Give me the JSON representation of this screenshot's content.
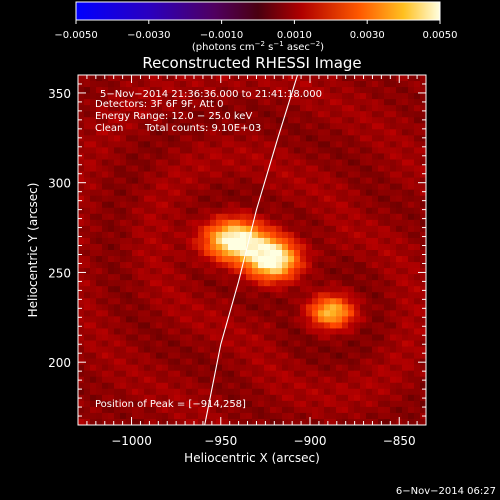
{
  "chart_data": {
    "type": "heatmap",
    "title": "Reconstructed RHESSI Image",
    "xlabel": "Heliocentric X (arcsec)",
    "ylabel": "Heliocentric Y (arcsec)",
    "xlim": [
      -1030,
      -835
    ],
    "ylim": [
      165,
      360
    ],
    "xticks": [
      -1000,
      -950,
      -900,
      -850
    ],
    "xtick_labels": [
      "−1000",
      "−950",
      "−900",
      "−850"
    ],
    "yticks": [
      200,
      250,
      300,
      350
    ],
    "ytick_labels": [
      "200",
      "250",
      "300",
      "350"
    ],
    "colorbar": {
      "range": [
        -0.005,
        0.005
      ],
      "ticks": [
        -0.005,
        -0.003,
        -0.001,
        0.001,
        0.003,
        0.005
      ],
      "tick_labels": [
        "−0.0050",
        "−0.0030",
        "−0.0010",
        "0.0010",
        "0.0030",
        "0.0050"
      ],
      "units_text": "(photons cm",
      "units_exp1": "−2",
      "units_mid": " s",
      "units_exp2": "−1",
      "units_end": " asec",
      "units_exp3": "−2",
      "units_close": ")"
    },
    "annotations": {
      "time_range": "5−Nov−2014 21:36:36.000 to 21:41:18.000",
      "detectors": "Detectors: 3F 6F 9F, Att 0",
      "energy": "Energy Range: 12.0 − 25.0 keV",
      "method": "Clean",
      "counts": "Total counts: 9.10E+03",
      "peak": "Position of Peak = [−914,258]"
    },
    "sources": [
      {
        "x": -942,
        "y": 268,
        "intensity": 1.0,
        "sx": 13,
        "sy": 8
      },
      {
        "x": -921,
        "y": 257,
        "intensity": 1.0,
        "sx": 11,
        "sy": 8
      },
      {
        "x": -888,
        "y": 228,
        "intensity": 0.72,
        "sx": 9,
        "sy": 6
      }
    ],
    "limb_curve": [
      [
        -959,
        165
      ],
      [
        -950,
        210
      ],
      [
        -940,
        245
      ],
      [
        -930,
        285
      ],
      [
        -918,
        325
      ],
      [
        -907,
        360
      ]
    ],
    "peak": [
      -914,
      258
    ]
  },
  "footer": {
    "date": "6−Nov−2014 06:27"
  }
}
